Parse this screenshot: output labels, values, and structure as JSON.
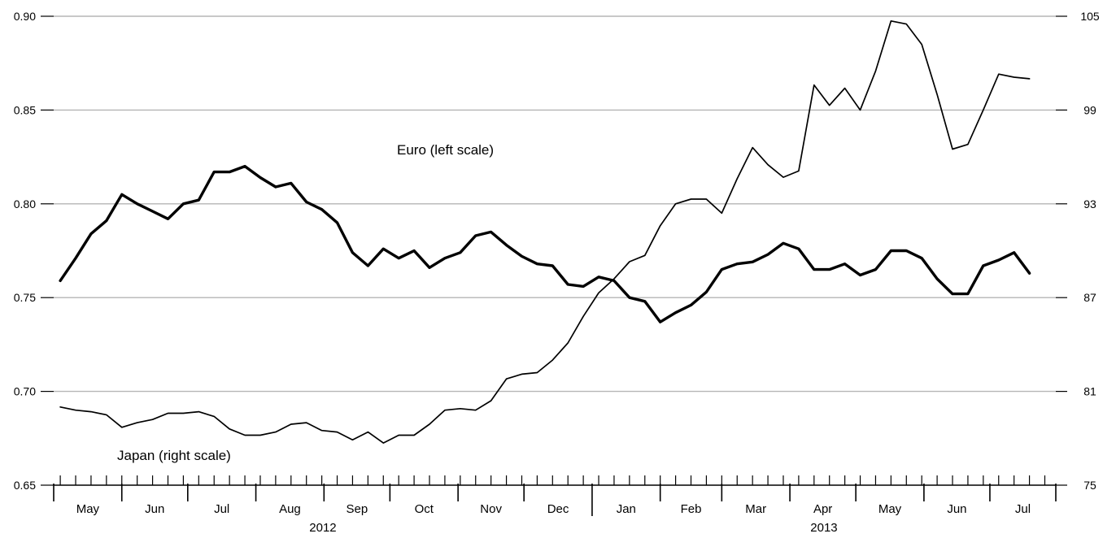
{
  "chart_data": {
    "type": "line",
    "title": "",
    "annotations": {
      "euro_label": "Euro (left scale)",
      "japan_label": "Japan (right scale)"
    },
    "left_axis": {
      "ylim": [
        0.65,
        0.9
      ],
      "ticks": [
        "0.90",
        "0.85",
        "0.80",
        "0.75",
        "0.70",
        "0.65"
      ],
      "tick_values": [
        0.9,
        0.85,
        0.8,
        0.75,
        0.7,
        0.65
      ]
    },
    "right_axis": {
      "ylim": [
        75,
        105
      ],
      "ticks": [
        "105",
        "99",
        "93",
        "87",
        "81",
        "75"
      ],
      "tick_values": [
        105,
        99,
        93,
        87,
        81,
        75
      ]
    },
    "x_axis": {
      "months": [
        "May",
        "Jun",
        "Jul",
        "Aug",
        "Sep",
        "Oct",
        "Nov",
        "Dec",
        "Jan",
        "Feb",
        "Mar",
        "Apr",
        "May",
        "Jun",
        "Jul"
      ],
      "years": [
        {
          "label": "2012",
          "start_month": 0,
          "end_month": 8
        },
        {
          "label": "2013",
          "start_month": 8,
          "end_month": 15
        }
      ],
      "start_date": "2012-05-01",
      "end_date": "2013-07-31",
      "weekly_ticks": true
    },
    "grid": true,
    "series": [
      {
        "name": "Euro",
        "axis": "left",
        "line_weight": "thick",
        "x": [
          "2012-05-04",
          "2012-05-11",
          "2012-05-18",
          "2012-05-25",
          "2012-06-01",
          "2012-06-08",
          "2012-06-15",
          "2012-06-22",
          "2012-06-29",
          "2012-07-06",
          "2012-07-13",
          "2012-07-20",
          "2012-07-27",
          "2012-08-03",
          "2012-08-10",
          "2012-08-17",
          "2012-08-24",
          "2012-08-31",
          "2012-09-07",
          "2012-09-14",
          "2012-09-21",
          "2012-09-28",
          "2012-10-05",
          "2012-10-12",
          "2012-10-19",
          "2012-10-26",
          "2012-11-02",
          "2012-11-09",
          "2012-11-16",
          "2012-11-23",
          "2012-11-30",
          "2012-12-07",
          "2012-12-14",
          "2012-12-21",
          "2012-12-28",
          "2013-01-04",
          "2013-01-11",
          "2013-01-18",
          "2013-01-25",
          "2013-02-01",
          "2013-02-08",
          "2013-02-15",
          "2013-02-22",
          "2013-03-01",
          "2013-03-08",
          "2013-03-15",
          "2013-03-22",
          "2013-03-29",
          "2013-04-05",
          "2013-04-12",
          "2013-04-19",
          "2013-04-26",
          "2013-05-03",
          "2013-05-10",
          "2013-05-17",
          "2013-05-24",
          "2013-05-31",
          "2013-06-07",
          "2013-06-14",
          "2013-06-21",
          "2013-06-28",
          "2013-07-05",
          "2013-07-12",
          "2013-07-19"
        ],
        "values": [
          0.759,
          0.771,
          0.784,
          0.791,
          0.805,
          0.8,
          0.796,
          0.792,
          0.8,
          0.802,
          0.817,
          0.817,
          0.82,
          0.814,
          0.809,
          0.811,
          0.801,
          0.797,
          0.79,
          0.774,
          0.767,
          0.776,
          0.771,
          0.775,
          0.766,
          0.771,
          0.774,
          0.783,
          0.785,
          0.778,
          0.772,
          0.768,
          0.767,
          0.757,
          0.756,
          0.761,
          0.759,
          0.75,
          0.748,
          0.737,
          0.742,
          0.746,
          0.753,
          0.765,
          0.768,
          0.769,
          0.773,
          0.779,
          0.776,
          0.765,
          0.765,
          0.768,
          0.762,
          0.765,
          0.775,
          0.775,
          0.771,
          0.76,
          0.752,
          0.752,
          0.767,
          0.77,
          0.774,
          0.763
        ]
      },
      {
        "name": "Japan",
        "axis": "right",
        "line_weight": "thin",
        "x": [
          "2012-05-04",
          "2012-05-11",
          "2012-05-18",
          "2012-05-25",
          "2012-06-01",
          "2012-06-08",
          "2012-06-15",
          "2012-06-22",
          "2012-06-29",
          "2012-07-06",
          "2012-07-13",
          "2012-07-20",
          "2012-07-27",
          "2012-08-03",
          "2012-08-10",
          "2012-08-17",
          "2012-08-24",
          "2012-08-31",
          "2012-09-07",
          "2012-09-14",
          "2012-09-21",
          "2012-09-28",
          "2012-10-05",
          "2012-10-12",
          "2012-10-19",
          "2012-10-26",
          "2012-11-02",
          "2012-11-09",
          "2012-11-16",
          "2012-11-23",
          "2012-11-30",
          "2012-12-07",
          "2012-12-14",
          "2012-12-21",
          "2012-12-28",
          "2013-01-04",
          "2013-01-11",
          "2013-01-18",
          "2013-01-25",
          "2013-02-01",
          "2013-02-08",
          "2013-02-15",
          "2013-02-22",
          "2013-03-01",
          "2013-03-08",
          "2013-03-15",
          "2013-03-22",
          "2013-03-29",
          "2013-04-05",
          "2013-04-12",
          "2013-04-19",
          "2013-04-26",
          "2013-05-03",
          "2013-05-10",
          "2013-05-17",
          "2013-05-24",
          "2013-05-31",
          "2013-06-07",
          "2013-06-14",
          "2013-06-21",
          "2013-06-28",
          "2013-07-05",
          "2013-07-12",
          "2013-07-19"
        ],
        "values": [
          80.0,
          79.8,
          79.7,
          79.5,
          78.7,
          79.0,
          79.2,
          79.6,
          79.6,
          79.7,
          79.4,
          78.6,
          78.2,
          78.2,
          78.4,
          78.9,
          79.0,
          78.5,
          78.4,
          77.9,
          78.4,
          77.7,
          78.2,
          78.2,
          78.9,
          79.8,
          79.9,
          79.8,
          80.4,
          81.8,
          82.1,
          82.2,
          83.0,
          84.1,
          85.8,
          87.3,
          88.2,
          89.3,
          89.7,
          91.6,
          93.0,
          93.3,
          93.3,
          92.4,
          94.6,
          96.6,
          95.5,
          94.7,
          95.1,
          100.6,
          99.3,
          100.4,
          99.0,
          101.5,
          104.7,
          104.5,
          103.2,
          100.0,
          96.5,
          96.8,
          99.0,
          101.3,
          101.1,
          101.0
        ]
      }
    ]
  }
}
